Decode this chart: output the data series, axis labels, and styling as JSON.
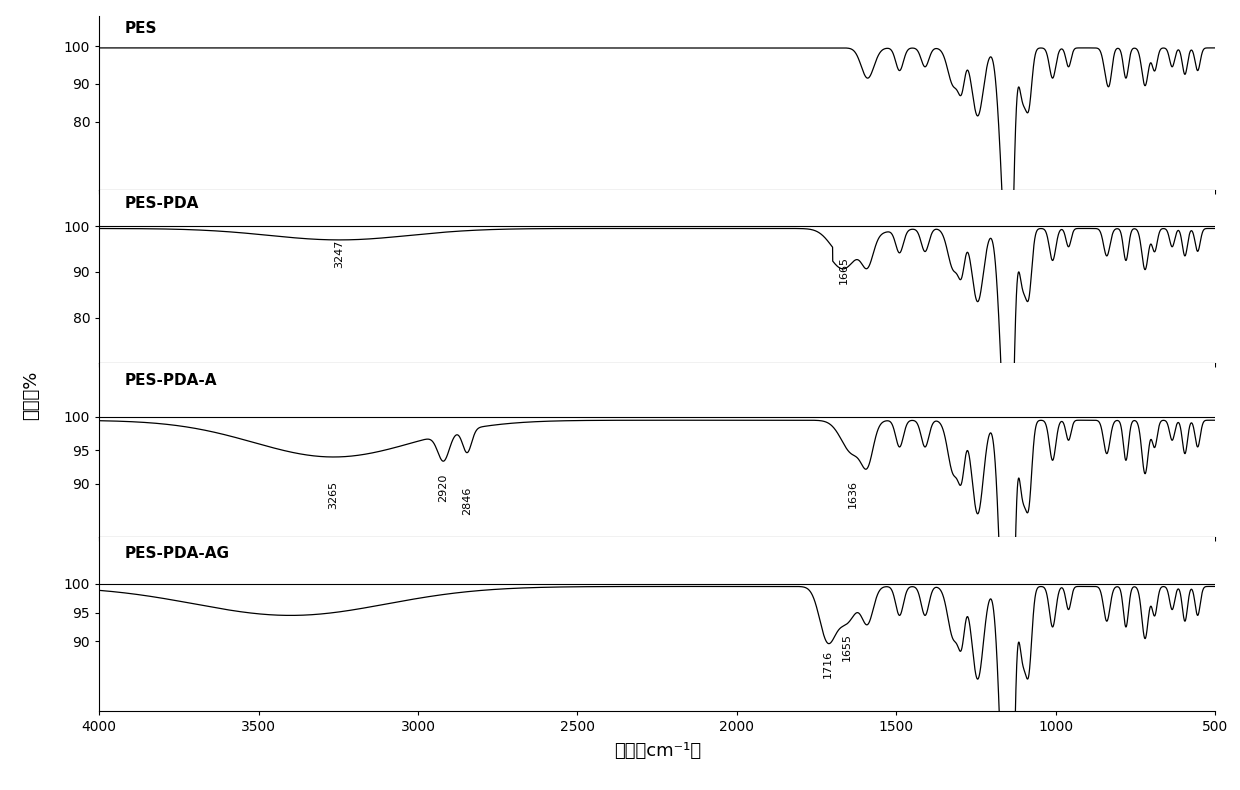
{
  "title": "",
  "xlabel": "波数（cm⁻¹）",
  "ylabel": "透过率%",
  "xlim": [
    4000,
    500
  ],
  "spectra_labels": [
    "PES",
    "PES-PDA",
    "PES-PDA-A",
    "PES-PDA-AG"
  ],
  "background_color": "#ffffff",
  "line_color": "#000000",
  "fontsize_label": 13,
  "fontsize_tick": 10,
  "fontsize_annot": 8,
  "subplot_settings": [
    {
      "label": "PES",
      "yticks": [
        80,
        90,
        100
      ],
      "ylim": [
        62,
        108
      ]
    },
    {
      "label": "PES-PDA",
      "yticks": [
        80,
        90,
        100
      ],
      "ylim": [
        70,
        108
      ]
    },
    {
      "label": "PES-PDA-A",
      "yticks": [
        90,
        95,
        100
      ],
      "ylim": [
        82,
        108
      ]
    },
    {
      "label": "PES-PDA-AG",
      "yticks": [
        90,
        95,
        100
      ],
      "ylim": [
        78,
        108
      ]
    }
  ]
}
